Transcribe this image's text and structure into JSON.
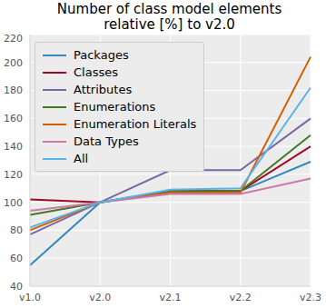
{
  "chart_data": {
    "type": "line",
    "title": "Number of class model elements\nrelative [%] to v2.0",
    "categories": [
      "v1.0",
      "v2.0",
      "v2.1",
      "v2.2",
      "v2.3"
    ],
    "series": [
      {
        "name": "Packages",
        "color": "#348ABD",
        "values": [
          55,
          100,
          108,
          108,
          129
        ]
      },
      {
        "name": "Classes",
        "color": "#A60628",
        "values": [
          102,
          100,
          108,
          108,
          140
        ]
      },
      {
        "name": "Attributes",
        "color": "#7A68A6",
        "values": [
          77,
          100,
          123,
          123,
          160
        ]
      },
      {
        "name": "Enumerations",
        "color": "#467821",
        "values": [
          91,
          100,
          108,
          108,
          148
        ]
      },
      {
        "name": "Enumeration Literals",
        "color": "#D55E00",
        "values": [
          80,
          100,
          107,
          107,
          204
        ]
      },
      {
        "name": "Data Types",
        "color": "#CC79A7",
        "values": [
          94,
          100,
          106,
          106,
          117
        ]
      },
      {
        "name": "All",
        "color": "#56B4E9",
        "values": [
          82,
          100,
          109,
          110,
          182
        ]
      }
    ],
    "ylim": [
      40,
      220
    ],
    "yticks": [
      40,
      60,
      80,
      100,
      120,
      140,
      160,
      180,
      200,
      220
    ],
    "grid": true,
    "legend": "upper left"
  }
}
